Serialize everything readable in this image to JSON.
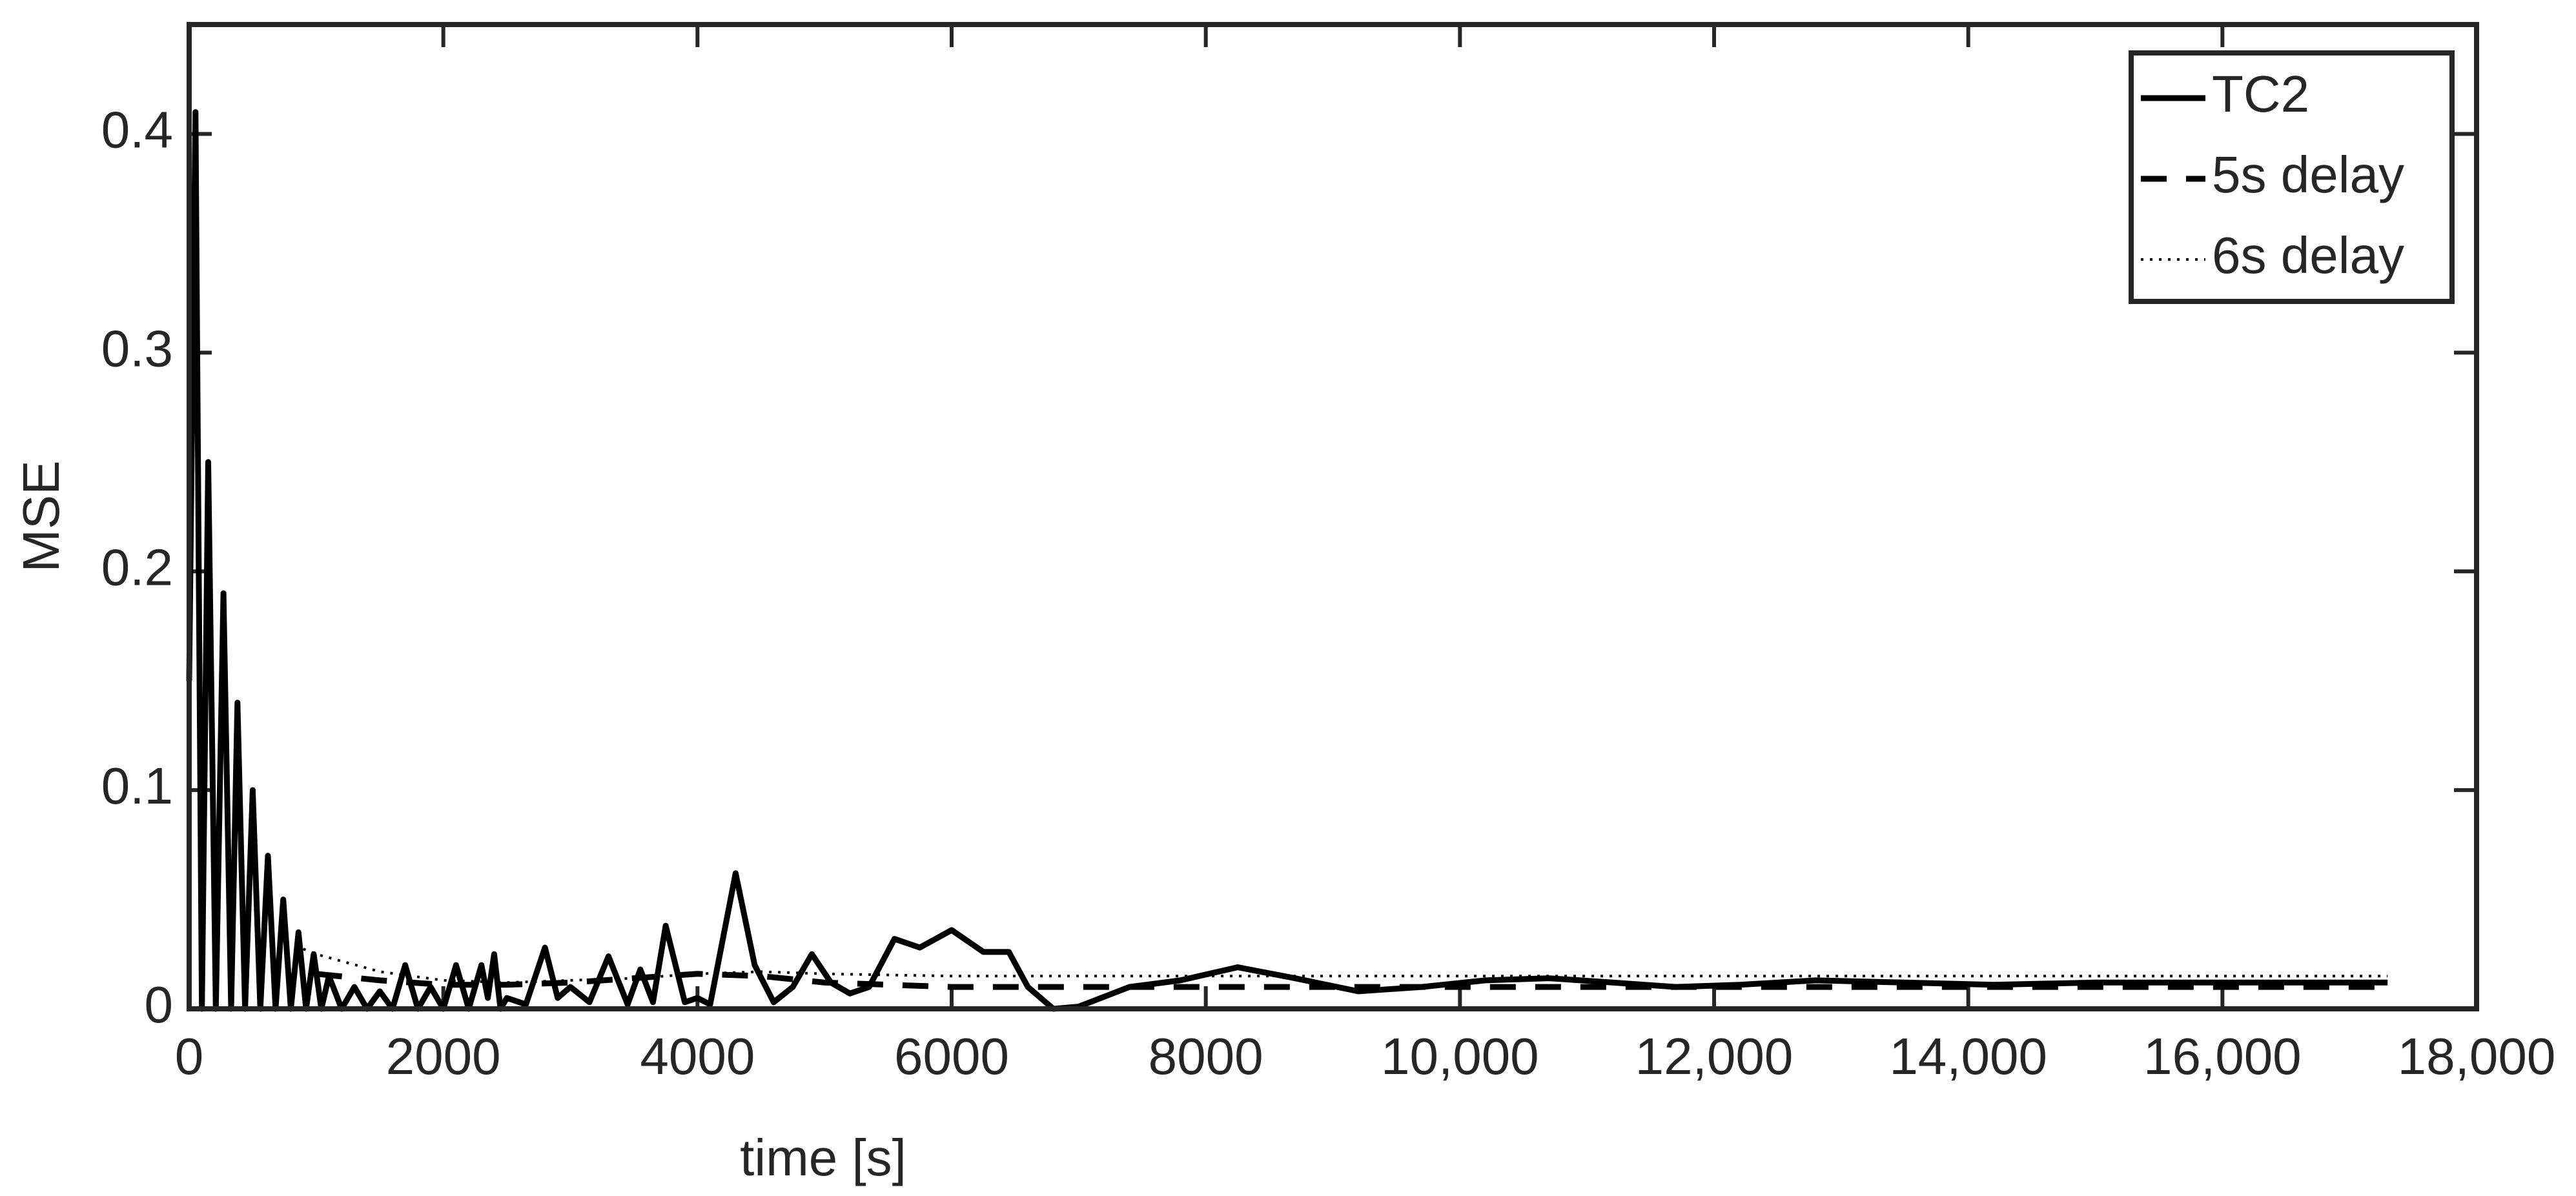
{
  "chart_data": {
    "type": "line",
    "xlabel": "time [s]",
    "ylabel": "MSE",
    "xlim": [
      0,
      18000
    ],
    "ylim": [
      0,
      0.45
    ],
    "xticks": [
      0,
      2000,
      4000,
      6000,
      8000,
      {
        "value": 10000,
        "label": "10,000"
      },
      {
        "value": 12000,
        "label": "12,000"
      },
      {
        "value": 14000,
        "label": "14,000"
      },
      {
        "value": 16000,
        "label": "16,000"
      },
      {
        "value": 18000,
        "label": "18,000"
      }
    ],
    "yticks": [
      0,
      0.1,
      0.2,
      0.3,
      0.4
    ],
    "legend": "upper-right",
    "series": [
      {
        "name": "TC2",
        "color": "#000000",
        "style": "solid",
        "x": [
          0,
          50,
          100,
          150,
          210,
          270,
          330,
          380,
          440,
          500,
          560,
          620,
          680,
          740,
          800,
          860,
          920,
          980,
          1040,
          1100,
          1200,
          1300,
          1400,
          1500,
          1600,
          1700,
          1800,
          1900,
          2000,
          2100,
          2200,
          2300,
          2350,
          2400,
          2450,
          2500,
          2650,
          2800,
          2900,
          3000,
          3150,
          3300,
          3450,
          3550,
          3650,
          3750,
          3900,
          4000,
          4100,
          4300,
          4450,
          4600,
          4750,
          4900,
          5050,
          5200,
          5350,
          5550,
          5750,
          6000,
          6250,
          6450,
          6600,
          6800,
          7000,
          7400,
          7800,
          8250,
          8700,
          9200,
          9700,
          10200,
          10700,
          11200,
          11700,
          12200,
          12800,
          13500,
          14200,
          15000,
          16000,
          17300
        ],
        "values": [
          0.15,
          0.41,
          0,
          0.25,
          0,
          0.19,
          0,
          0.14,
          0,
          0.1,
          0,
          0.07,
          0,
          0.05,
          0,
          0.035,
          0,
          0.025,
          0,
          0.015,
          0,
          0.01,
          0,
          0.008,
          0,
          0.02,
          0,
          0.01,
          0,
          0.02,
          0,
          0.02,
          0.005,
          0.025,
          0,
          0.005,
          0.002,
          0.028,
          0.005,
          0.01,
          0.003,
          0.024,
          0.002,
          0.018,
          0.003,
          0.038,
          0.003,
          0.005,
          0.002,
          0.062,
          0.02,
          0.003,
          0.01,
          0.025,
          0.012,
          0.007,
          0.01,
          0.032,
          0.028,
          0.036,
          0.026,
          0.026,
          0.01,
          0,
          0.001,
          0.01,
          0.013,
          0.019,
          0.014,
          0.008,
          0.01,
          0.013,
          0.014,
          0.012,
          0.01,
          0.011,
          0.013,
          0.012,
          0.011,
          0.012,
          0.012,
          0.012
        ]
      },
      {
        "name": "5s delay",
        "color": "#000000",
        "style": "dashed",
        "x": [
          1000,
          1500,
          2000,
          2500,
          3000,
          3500,
          4000,
          4500,
          5000,
          5500,
          6000,
          8000,
          10000,
          12000,
          14000,
          17300
        ],
        "values": [
          0.016,
          0.013,
          0.011,
          0.011,
          0.012,
          0.014,
          0.016,
          0.015,
          0.012,
          0.011,
          0.01,
          0.01,
          0.01,
          0.01,
          0.01,
          0.01
        ]
      },
      {
        "name": "6s delay",
        "color": "#000000",
        "style": "dotted",
        "x": [
          700,
          1000,
          1500,
          2000,
          2500,
          3000,
          3500,
          4000,
          4500,
          5000,
          6000,
          8000,
          10000,
          12000,
          14000,
          17300
        ],
        "values": [
          0.032,
          0.025,
          0.017,
          0.013,
          0.012,
          0.013,
          0.014,
          0.016,
          0.017,
          0.016,
          0.015,
          0.015,
          0.015,
          0.015,
          0.015,
          0.015
        ]
      }
    ]
  }
}
